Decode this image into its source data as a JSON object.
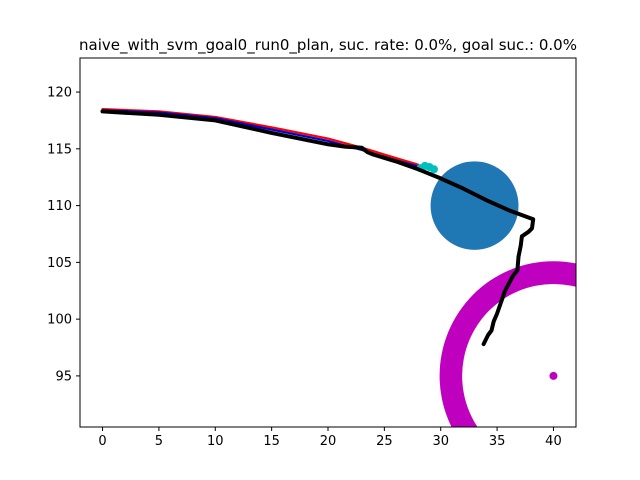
{
  "chart_data": {
    "type": "scatter",
    "title": "naive_with_svm_goal0_run0_plan, suc. rate: 0.0%, goal suc.: 0.0%",
    "xlabel": "",
    "ylabel": "",
    "xlim": [
      -2,
      42
    ],
    "ylim": [
      90.5,
      123
    ],
    "xticks": [
      0,
      5,
      10,
      15,
      20,
      25,
      30,
      35,
      40
    ],
    "yticks": [
      95,
      100,
      105,
      110,
      115,
      120
    ],
    "grid": false,
    "legend": "none",
    "colors": {
      "executed_path": "#000000",
      "plan_red": "#ff0000",
      "plan_blue": "#0000cc",
      "plan_cyan": "#00bfbf",
      "obstacle": "#1f77b4",
      "goal": "#bf00bf"
    },
    "series": [
      {
        "role": "plan-red",
        "x": [
          0,
          5,
          10,
          15,
          20,
          23,
          24,
          26,
          28
        ],
        "y": [
          118.5,
          118.3,
          117.8,
          116.9,
          115.9,
          115.1,
          114.8,
          114.2,
          113.6
        ]
      },
      {
        "role": "plan-blue",
        "x": [
          0,
          5,
          10,
          15,
          20,
          23,
          24,
          26,
          28.5
        ],
        "y": [
          118.4,
          118.2,
          117.7,
          116.7,
          115.7,
          114.9,
          114.6,
          114.0,
          113.3
        ]
      },
      {
        "role": "plan-cyan",
        "x": [
          28.2,
          28.6,
          29.0,
          29.4
        ],
        "y": [
          113.3,
          113.5,
          113.4,
          113.2
        ]
      },
      {
        "role": "executed-path",
        "x": [
          0,
          5,
          10,
          15,
          20,
          21.5,
          23,
          23.5,
          24,
          26,
          28,
          30,
          32,
          34,
          36,
          38.2,
          38.1,
          37.8,
          37.2,
          37.1,
          36.9,
          36.8,
          36.4,
          35.7,
          35.0,
          34.7,
          34.5,
          34.2,
          34.0,
          33.8
        ],
        "y": [
          118.3,
          118.0,
          117.5,
          116.4,
          115.4,
          115.2,
          115.1,
          114.7,
          114.5,
          113.9,
          113.2,
          112.4,
          111.5,
          110.5,
          109.6,
          108.8,
          108.0,
          107.7,
          107.3,
          106.5,
          105.5,
          104.3,
          103.8,
          102.5,
          100.5,
          99.8,
          99.0,
          98.6,
          98.2,
          97.8
        ]
      }
    ],
    "obstacles": [
      {
        "shape": "circle",
        "cx": 33,
        "cy": 110,
        "r": 3.9,
        "color": "#1f77b4"
      }
    ],
    "goal": {
      "ring": {
        "cx": 40,
        "cy": 95,
        "r_outer": 10.1,
        "r_inner": 8.1
      },
      "point": {
        "x": 40,
        "y": 95
      }
    }
  }
}
